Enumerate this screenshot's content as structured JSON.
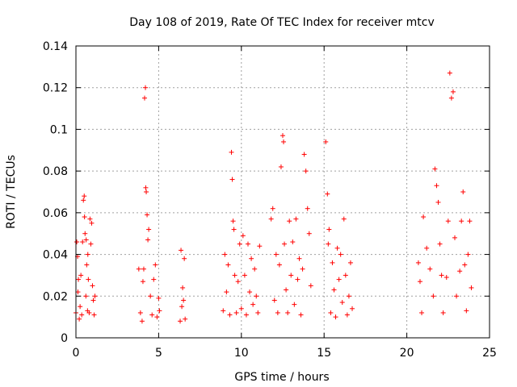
{
  "chart_data": {
    "type": "scatter",
    "title": "Day 108 of 2019, Rate Of TEC Index for receiver mtcv",
    "xlabel": "GPS time / hours",
    "ylabel": "ROTI / TECUs",
    "xlim": [
      0,
      25
    ],
    "ylim": [
      0,
      0.14
    ],
    "x_ticks": [
      0,
      5,
      10,
      15,
      20,
      25
    ],
    "x_tick_labels": [
      "0",
      "5",
      "10",
      "15",
      "20",
      "25"
    ],
    "y_ticks": [
      0,
      0.02,
      0.04,
      0.06,
      0.08,
      0.1,
      0.12,
      0.14
    ],
    "y_tick_labels": [
      "0",
      "0.02",
      "0.04",
      "0.06",
      "0.08",
      "0.1",
      "0.12",
      "0.14"
    ],
    "grid": true,
    "marker": "+",
    "color": "#ff0000",
    "series": [
      {
        "name": "ROTI",
        "x": [
          0.0,
          0.05,
          0.1,
          0.12,
          0.15,
          0.2,
          0.25,
          0.3,
          0.35,
          0.4,
          0.45,
          0.5,
          0.52,
          0.55,
          0.6,
          0.62,
          0.65,
          0.7,
          0.72,
          0.75,
          0.8,
          0.85,
          0.9,
          0.95,
          1.0,
          1.05,
          1.1,
          1.15,
          3.8,
          3.9,
          4.0,
          4.05,
          4.1,
          4.15,
          4.2,
          4.22,
          4.25,
          4.3,
          4.35,
          4.4,
          4.5,
          4.6,
          4.7,
          4.8,
          4.9,
          5.0,
          5.05,
          6.3,
          6.35,
          6.4,
          6.45,
          6.5,
          6.55,
          6.6,
          8.9,
          9.0,
          9.1,
          9.2,
          9.3,
          9.4,
          9.45,
          9.5,
          9.55,
          9.6,
          9.7,
          9.8,
          9.9,
          10.0,
          10.1,
          10.2,
          10.3,
          10.4,
          10.5,
          10.6,
          10.7,
          10.8,
          10.9,
          11.0,
          11.1,
          11.8,
          11.9,
          12.0,
          12.1,
          12.2,
          12.3,
          12.4,
          12.5,
          12.55,
          12.6,
          12.7,
          12.8,
          12.9,
          13.0,
          13.1,
          13.2,
          13.3,
          13.4,
          13.5,
          13.6,
          13.7,
          13.8,
          13.9,
          14.0,
          14.1,
          14.2,
          15.1,
          15.2,
          15.25,
          15.3,
          15.4,
          15.5,
          15.6,
          15.7,
          15.8,
          15.9,
          16.0,
          16.1,
          16.2,
          16.3,
          16.4,
          16.5,
          16.6,
          16.7,
          20.7,
          20.8,
          20.9,
          21.0,
          21.2,
          21.4,
          21.6,
          21.7,
          21.8,
          21.9,
          22.0,
          22.1,
          22.2,
          22.4,
          22.5,
          22.6,
          22.7,
          22.8,
          22.9,
          23.0,
          23.2,
          23.3,
          23.4,
          23.5,
          23.6,
          23.7,
          23.8,
          23.9
        ],
        "y": [
          0.012,
          0.046,
          0.039,
          0.022,
          0.028,
          0.009,
          0.015,
          0.03,
          0.011,
          0.046,
          0.066,
          0.068,
          0.058,
          0.05,
          0.02,
          0.047,
          0.035,
          0.013,
          0.04,
          0.028,
          0.012,
          0.057,
          0.045,
          0.055,
          0.025,
          0.018,
          0.011,
          0.02,
          0.033,
          0.012,
          0.008,
          0.027,
          0.033,
          0.115,
          0.12,
          0.072,
          0.07,
          0.059,
          0.047,
          0.052,
          0.02,
          0.011,
          0.028,
          0.035,
          0.01,
          0.019,
          0.013,
          0.008,
          0.042,
          0.015,
          0.024,
          0.018,
          0.038,
          0.009,
          0.013,
          0.04,
          0.022,
          0.035,
          0.011,
          0.089,
          0.076,
          0.056,
          0.052,
          0.03,
          0.012,
          0.027,
          0.045,
          0.014,
          0.049,
          0.03,
          0.011,
          0.045,
          0.022,
          0.038,
          0.016,
          0.033,
          0.02,
          0.012,
          0.044,
          0.057,
          0.062,
          0.018,
          0.04,
          0.012,
          0.035,
          0.082,
          0.097,
          0.094,
          0.045,
          0.023,
          0.012,
          0.056,
          0.03,
          0.046,
          0.016,
          0.057,
          0.028,
          0.038,
          0.011,
          0.033,
          0.088,
          0.08,
          0.062,
          0.05,
          0.025,
          0.094,
          0.069,
          0.045,
          0.052,
          0.012,
          0.036,
          0.023,
          0.01,
          0.043,
          0.028,
          0.04,
          0.017,
          0.057,
          0.03,
          0.011,
          0.02,
          0.036,
          0.014,
          0.036,
          0.027,
          0.012,
          0.058,
          0.043,
          0.033,
          0.02,
          0.081,
          0.073,
          0.065,
          0.045,
          0.03,
          0.012,
          0.029,
          0.056,
          0.127,
          0.115,
          0.118,
          0.048,
          0.02,
          0.032,
          0.056,
          0.07,
          0.035,
          0.013,
          0.04,
          0.056,
          0.024
        ]
      }
    ]
  }
}
